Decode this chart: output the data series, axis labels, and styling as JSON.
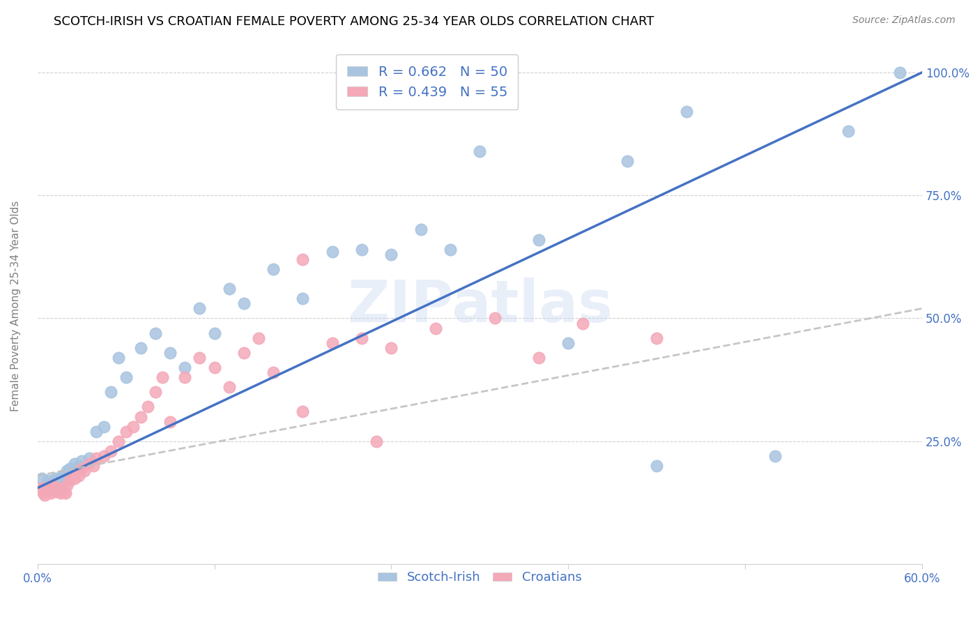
{
  "title": "SCOTCH-IRISH VS CROATIAN FEMALE POVERTY AMONG 25-34 YEAR OLDS CORRELATION CHART",
  "source": "Source: ZipAtlas.com",
  "ylabel": "Female Poverty Among 25-34 Year Olds",
  "xmin": 0.0,
  "xmax": 0.6,
  "ymin": 0.0,
  "ymax": 1.05,
  "scotch_irish_color": "#a8c4e0",
  "croatian_color": "#f4a8b8",
  "scotch_irish_R": 0.662,
  "scotch_irish_N": 50,
  "croatian_R": 0.439,
  "croatian_N": 55,
  "legend_label_si": "Scotch-Irish",
  "legend_label_cr": "Croatians",
  "si_line_color": "#4472c4",
  "cr_line_color": "#c0c0c0",
  "text_color_blue": "#4472c4",
  "title_fontsize": 13,
  "label_fontsize": 11,
  "legend_fontsize": 14,
  "scotch_irish_x": [
    0.003,
    0.005,
    0.006,
    0.007,
    0.008,
    0.009,
    0.01,
    0.011,
    0.012,
    0.013,
    0.014,
    0.015,
    0.016,
    0.017,
    0.018,
    0.02,
    0.022,
    0.025,
    0.028,
    0.03,
    0.035,
    0.04,
    0.045,
    0.05,
    0.055,
    0.06,
    0.07,
    0.08,
    0.09,
    0.1,
    0.11,
    0.12,
    0.13,
    0.14,
    0.16,
    0.18,
    0.2,
    0.22,
    0.24,
    0.26,
    0.28,
    0.3,
    0.34,
    0.36,
    0.4,
    0.42,
    0.44,
    0.5,
    0.55,
    0.585
  ],
  "scotch_irish_y": [
    0.175,
    0.155,
    0.16,
    0.17,
    0.155,
    0.165,
    0.16,
    0.17,
    0.175,
    0.165,
    0.17,
    0.175,
    0.155,
    0.18,
    0.175,
    0.19,
    0.195,
    0.205,
    0.2,
    0.21,
    0.215,
    0.27,
    0.28,
    0.35,
    0.42,
    0.38,
    0.44,
    0.47,
    0.43,
    0.4,
    0.52,
    0.47,
    0.56,
    0.53,
    0.6,
    0.54,
    0.635,
    0.64,
    0.63,
    0.68,
    0.64,
    0.84,
    0.66,
    0.45,
    0.82,
    0.2,
    0.92,
    0.22,
    0.88,
    1.0
  ],
  "croatian_x": [
    0.002,
    0.003,
    0.004,
    0.005,
    0.006,
    0.007,
    0.008,
    0.009,
    0.01,
    0.011,
    0.012,
    0.013,
    0.014,
    0.015,
    0.016,
    0.017,
    0.018,
    0.019,
    0.02,
    0.022,
    0.025,
    0.028,
    0.03,
    0.032,
    0.035,
    0.038,
    0.04,
    0.045,
    0.05,
    0.055,
    0.06,
    0.065,
    0.07,
    0.075,
    0.08,
    0.085,
    0.09,
    0.1,
    0.11,
    0.12,
    0.13,
    0.14,
    0.15,
    0.16,
    0.18,
    0.2,
    0.22,
    0.24,
    0.27,
    0.31,
    0.34,
    0.37,
    0.18,
    0.23,
    0.42
  ],
  "croatian_y": [
    0.155,
    0.15,
    0.145,
    0.14,
    0.155,
    0.148,
    0.152,
    0.145,
    0.16,
    0.15,
    0.155,
    0.148,
    0.152,
    0.155,
    0.145,
    0.15,
    0.148,
    0.145,
    0.16,
    0.17,
    0.175,
    0.18,
    0.195,
    0.19,
    0.205,
    0.2,
    0.215,
    0.22,
    0.23,
    0.25,
    0.27,
    0.28,
    0.3,
    0.32,
    0.35,
    0.38,
    0.29,
    0.38,
    0.42,
    0.4,
    0.36,
    0.43,
    0.46,
    0.39,
    0.31,
    0.45,
    0.46,
    0.44,
    0.48,
    0.5,
    0.42,
    0.49,
    0.62,
    0.25,
    0.46
  ],
  "si_line_x0": 0.0,
  "si_line_y0": 0.155,
  "si_line_x1": 0.6,
  "si_line_y1": 1.0,
  "cr_line_x0": 0.0,
  "cr_line_y0": 0.18,
  "cr_line_x1": 0.6,
  "cr_line_y1": 0.52
}
